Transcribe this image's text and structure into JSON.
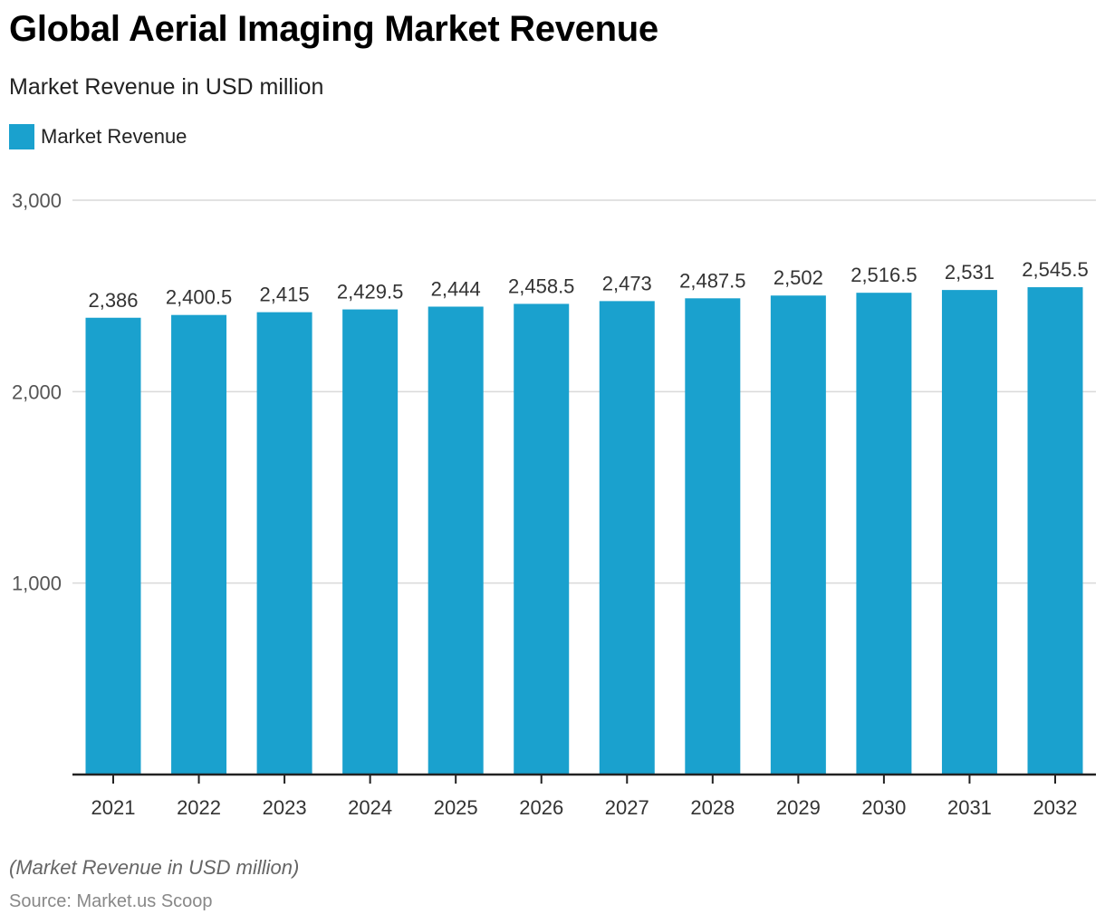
{
  "header": {
    "title": "Global Aerial Imaging Market Revenue",
    "subtitle": "Market Revenue in USD million"
  },
  "footer": {
    "note": "(Market Revenue in USD million)",
    "source": "Source: Market.us Scoop"
  },
  "colors": {
    "bar": "#1aa1ce",
    "grid": "#d9d9d9",
    "axis": "#222222",
    "tick_text": "#555555",
    "label_text": "#333333"
  },
  "chart_data": {
    "type": "bar",
    "title": "Global Aerial Imaging Market Revenue",
    "subtitle": "Market Revenue in USD million",
    "xlabel": "",
    "ylabel": "",
    "categories": [
      "2021",
      "2022",
      "2023",
      "2024",
      "2025",
      "2026",
      "2027",
      "2028",
      "2029",
      "2030",
      "2031",
      "2032"
    ],
    "series": [
      {
        "name": "Market Revenue",
        "values": [
          2386,
          2400.5,
          2415,
          2429.5,
          2444,
          2458.5,
          2473,
          2487.5,
          2502,
          2516.5,
          2531,
          2545.5
        ],
        "labels": [
          "2,386",
          "2,400.5",
          "2,415",
          "2,429.5",
          "2,444",
          "2,458.5",
          "2,473",
          "2,487.5",
          "2,502",
          "2,516.5",
          "2,531",
          "2,545.5"
        ]
      }
    ],
    "ylim": [
      0,
      3000
    ],
    "yticks": [
      1000,
      2000,
      3000
    ],
    "ytick_labels": [
      "1,000",
      "2,000",
      "3,000"
    ],
    "grid": true,
    "legend": {
      "position": "top-left",
      "entries": [
        "Market Revenue"
      ]
    }
  }
}
